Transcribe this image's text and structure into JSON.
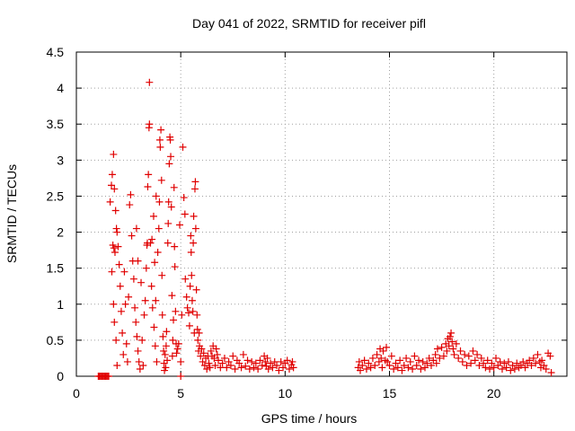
{
  "chart_data": {
    "type": "scatter",
    "title": "Day 041 of 2022, SRMTID for receiver pifl",
    "xlabel": "GPS time / hours",
    "ylabel": "SRMTID / TECUs",
    "xlim": [
      0,
      23.5
    ],
    "ylim": [
      0,
      4.5
    ],
    "xticks": [
      0,
      5,
      10,
      15,
      20
    ],
    "yticks": [
      0,
      0.5,
      1,
      1.5,
      2,
      2.5,
      3,
      3.5,
      4,
      4.5
    ],
    "ytick_labels": [
      "0",
      "0.5",
      "1",
      "1.5",
      "2",
      "2.5",
      "3",
      "3.5",
      "4",
      "4.5"
    ],
    "grid": true,
    "marker": "+",
    "series": [
      {
        "name": "SRMTID",
        "color": "#e00000",
        "points": [
          [
            1.05,
            0.0
          ],
          [
            1.1,
            0.0
          ],
          [
            1.15,
            0.0
          ],
          [
            1.2,
            0.0
          ],
          [
            1.25,
            0.0
          ],
          [
            1.3,
            0.0
          ],
          [
            1.35,
            0.0
          ],
          [
            1.4,
            0.0
          ],
          [
            1.45,
            0.0
          ],
          [
            1.5,
            0.0
          ],
          [
            1.55,
            0.0
          ],
          [
            5.0,
            0.0
          ],
          [
            1.62,
            2.42
          ],
          [
            1.68,
            2.65
          ],
          [
            1.72,
            2.8
          ],
          [
            1.78,
            3.08
          ],
          [
            1.82,
            2.6
          ],
          [
            1.75,
            1.82
          ],
          [
            1.8,
            1.78
          ],
          [
            1.85,
            1.72
          ],
          [
            1.7,
            1.45
          ],
          [
            1.88,
            2.3
          ],
          [
            1.92,
            2.05
          ],
          [
            1.95,
            2.0
          ],
          [
            2.0,
            1.8
          ],
          [
            1.78,
            1.0
          ],
          [
            1.82,
            0.75
          ],
          [
            1.9,
            0.5
          ],
          [
            1.95,
            0.15
          ],
          [
            2.05,
            1.55
          ],
          [
            2.1,
            1.25
          ],
          [
            2.15,
            0.9
          ],
          [
            2.2,
            0.6
          ],
          [
            2.25,
            0.3
          ],
          [
            2.3,
            1.45
          ],
          [
            2.35,
            1.0
          ],
          [
            2.4,
            0.45
          ],
          [
            2.45,
            0.2
          ],
          [
            2.5,
            1.1
          ],
          [
            2.55,
            2.38
          ],
          [
            2.6,
            2.52
          ],
          [
            2.65,
            1.95
          ],
          [
            2.7,
            1.6
          ],
          [
            2.75,
            1.35
          ],
          [
            2.8,
            0.95
          ],
          [
            2.85,
            0.75
          ],
          [
            2.9,
            0.55
          ],
          [
            2.95,
            0.35
          ],
          [
            3.0,
            0.2
          ],
          [
            3.05,
            0.1
          ],
          [
            2.88,
            2.05
          ],
          [
            2.95,
            1.6
          ],
          [
            3.1,
            1.3
          ],
          [
            3.15,
            0.5
          ],
          [
            3.2,
            0.15
          ],
          [
            3.25,
            0.85
          ],
          [
            3.3,
            1.05
          ],
          [
            3.35,
            1.5
          ],
          [
            3.38,
            1.82
          ],
          [
            3.4,
            1.85
          ],
          [
            3.42,
            2.63
          ],
          [
            3.45,
            2.8
          ],
          [
            3.48,
            3.45
          ],
          [
            3.5,
            3.5
          ],
          [
            3.5,
            4.08
          ],
          [
            3.55,
            1.85
          ],
          [
            3.6,
            1.25
          ],
          [
            3.62,
            1.9
          ],
          [
            3.65,
            0.95
          ],
          [
            3.7,
            2.22
          ],
          [
            3.72,
            0.68
          ],
          [
            3.75,
            1.58
          ],
          [
            3.78,
            0.42
          ],
          [
            3.8,
            1.05
          ],
          [
            3.82,
            2.5
          ],
          [
            3.85,
            0.2
          ],
          [
            3.9,
            1.72
          ],
          [
            3.95,
            2.05
          ],
          [
            3.98,
            2.42
          ],
          [
            4.0,
            3.28
          ],
          [
            4.02,
            3.18
          ],
          [
            4.05,
            3.42
          ],
          [
            4.08,
            2.72
          ],
          [
            4.1,
            1.4
          ],
          [
            4.12,
            0.85
          ],
          [
            4.15,
            0.55
          ],
          [
            4.18,
            0.35
          ],
          [
            4.2,
            0.18
          ],
          [
            4.22,
            0.08
          ],
          [
            4.25,
            0.3
          ],
          [
            4.28,
            0.12
          ],
          [
            4.3,
            0.42
          ],
          [
            4.32,
            0.62
          ],
          [
            4.35,
            0.22
          ],
          [
            4.38,
            1.85
          ],
          [
            4.4,
            2.12
          ],
          [
            4.42,
            2.42
          ],
          [
            4.45,
            2.95
          ],
          [
            4.48,
            3.32
          ],
          [
            4.5,
            3.28
          ],
          [
            4.52,
            3.05
          ],
          [
            4.55,
            2.35
          ],
          [
            4.58,
            1.12
          ],
          [
            4.6,
            0.28
          ],
          [
            4.62,
            0.5
          ],
          [
            4.65,
            0.78
          ],
          [
            4.68,
            2.62
          ],
          [
            4.7,
            1.8
          ],
          [
            4.72,
            1.52
          ],
          [
            4.75,
            0.9
          ],
          [
            4.78,
            0.45
          ],
          [
            4.8,
            0.32
          ],
          [
            4.85,
            0.38
          ],
          [
            4.9,
            0.45
          ],
          [
            4.95,
            2.1
          ],
          [
            5.0,
            0.2
          ],
          [
            5.05,
            0.85
          ],
          [
            5.1,
            3.18
          ],
          [
            5.15,
            2.48
          ],
          [
            5.2,
            2.25
          ],
          [
            5.22,
            1.35
          ],
          [
            5.28,
            1.1
          ],
          [
            5.32,
            0.95
          ],
          [
            5.38,
            0.88
          ],
          [
            5.42,
            0.7
          ],
          [
            5.45,
            1.25
          ],
          [
            5.48,
            1.95
          ],
          [
            5.5,
            1.72
          ],
          [
            5.52,
            1.4
          ],
          [
            5.55,
            1.05
          ],
          [
            5.58,
            0.9
          ],
          [
            5.6,
            1.85
          ],
          [
            5.62,
            2.22
          ],
          [
            5.65,
            0.6
          ],
          [
            5.68,
            2.6
          ],
          [
            5.7,
            2.7
          ],
          [
            5.72,
            2.05
          ],
          [
            5.75,
            1.2
          ],
          [
            5.78,
            0.85
          ],
          [
            5.8,
            0.65
          ],
          [
            5.82,
            0.5
          ],
          [
            5.85,
            0.35
          ],
          [
            5.88,
            0.6
          ],
          [
            5.9,
            0.42
          ],
          [
            5.95,
            0.28
          ],
          [
            6.0,
            0.38
          ],
          [
            6.05,
            0.2
          ],
          [
            6.1,
            0.32
          ],
          [
            6.15,
            0.15
          ],
          [
            6.2,
            0.25
          ],
          [
            6.25,
            0.1
          ],
          [
            6.3,
            0.28
          ],
          [
            6.35,
            0.18
          ],
          [
            6.4,
            0.12
          ],
          [
            6.45,
            0.35
          ],
          [
            6.5,
            0.28
          ],
          [
            6.55,
            0.42
          ],
          [
            6.6,
            0.25
          ],
          [
            6.65,
            0.15
          ],
          [
            6.7,
            0.38
          ],
          [
            6.75,
            0.3
          ],
          [
            6.8,
            0.22
          ],
          [
            6.9,
            0.12
          ],
          [
            7.0,
            0.18
          ],
          [
            7.1,
            0.25
          ],
          [
            7.2,
            0.12
          ],
          [
            7.3,
            0.2
          ],
          [
            7.4,
            0.15
          ],
          [
            7.5,
            0.28
          ],
          [
            7.6,
            0.1
          ],
          [
            7.7,
            0.22
          ],
          [
            7.8,
            0.18
          ],
          [
            7.9,
            0.12
          ],
          [
            8.0,
            0.3
          ],
          [
            8.1,
            0.14
          ],
          [
            8.2,
            0.22
          ],
          [
            8.3,
            0.1
          ],
          [
            8.4,
            0.2
          ],
          [
            8.5,
            0.12
          ],
          [
            8.6,
            0.18
          ],
          [
            8.7,
            0.1
          ],
          [
            8.8,
            0.22
          ],
          [
            8.9,
            0.15
          ],
          [
            9.0,
            0.28
          ],
          [
            9.05,
            0.2
          ],
          [
            9.1,
            0.14
          ],
          [
            9.15,
            0.25
          ],
          [
            9.2,
            0.1
          ],
          [
            9.3,
            0.18
          ],
          [
            9.4,
            0.12
          ],
          [
            9.5,
            0.2
          ],
          [
            9.6,
            0.15
          ],
          [
            9.7,
            0.08
          ],
          [
            9.8,
            0.2
          ],
          [
            9.9,
            0.12
          ],
          [
            10.0,
            0.18
          ],
          [
            10.1,
            0.22
          ],
          [
            10.2,
            0.1
          ],
          [
            10.3,
            0.16
          ],
          [
            10.35,
            0.2
          ],
          [
            10.4,
            0.12
          ],
          [
            13.5,
            0.12
          ],
          [
            13.55,
            0.2
          ],
          [
            13.6,
            0.08
          ],
          [
            13.7,
            0.15
          ],
          [
            13.8,
            0.22
          ],
          [
            13.9,
            0.1
          ],
          [
            14.0,
            0.18
          ],
          [
            14.1,
            0.12
          ],
          [
            14.2,
            0.25
          ],
          [
            14.3,
            0.15
          ],
          [
            14.4,
            0.3
          ],
          [
            14.5,
            0.2
          ],
          [
            14.55,
            0.38
          ],
          [
            14.6,
            0.25
          ],
          [
            14.65,
            0.12
          ],
          [
            14.7,
            0.35
          ],
          [
            14.8,
            0.22
          ],
          [
            14.85,
            0.4
          ],
          [
            14.9,
            0.2
          ],
          [
            15.0,
            0.15
          ],
          [
            15.1,
            0.28
          ],
          [
            15.2,
            0.1
          ],
          [
            15.3,
            0.18
          ],
          [
            15.4,
            0.12
          ],
          [
            15.5,
            0.22
          ],
          [
            15.6,
            0.08
          ],
          [
            15.7,
            0.15
          ],
          [
            15.8,
            0.25
          ],
          [
            15.9,
            0.12
          ],
          [
            16.0,
            0.2
          ],
          [
            16.1,
            0.1
          ],
          [
            16.2,
            0.28
          ],
          [
            16.3,
            0.15
          ],
          [
            16.4,
            0.22
          ],
          [
            16.5,
            0.1
          ],
          [
            16.6,
            0.2
          ],
          [
            16.7,
            0.12
          ],
          [
            16.8,
            0.18
          ],
          [
            16.9,
            0.25
          ],
          [
            17.0,
            0.15
          ],
          [
            17.1,
            0.22
          ],
          [
            17.2,
            0.3
          ],
          [
            17.25,
            0.18
          ],
          [
            17.3,
            0.38
          ],
          [
            17.4,
            0.25
          ],
          [
            17.5,
            0.4
          ],
          [
            17.6,
            0.28
          ],
          [
            17.7,
            0.45
          ],
          [
            17.75,
            0.35
          ],
          [
            17.8,
            0.52
          ],
          [
            17.85,
            0.42
          ],
          [
            17.9,
            0.55
          ],
          [
            17.95,
            0.6
          ],
          [
            18.0,
            0.48
          ],
          [
            18.05,
            0.38
          ],
          [
            18.1,
            0.3
          ],
          [
            18.2,
            0.45
          ],
          [
            18.3,
            0.25
          ],
          [
            18.4,
            0.35
          ],
          [
            18.5,
            0.2
          ],
          [
            18.6,
            0.3
          ],
          [
            18.7,
            0.15
          ],
          [
            18.8,
            0.28
          ],
          [
            18.9,
            0.18
          ],
          [
            19.0,
            0.35
          ],
          [
            19.1,
            0.22
          ],
          [
            19.2,
            0.3
          ],
          [
            19.3,
            0.15
          ],
          [
            19.4,
            0.25
          ],
          [
            19.5,
            0.18
          ],
          [
            19.6,
            0.12
          ],
          [
            19.7,
            0.22
          ],
          [
            19.8,
            0.1
          ],
          [
            19.9,
            0.18
          ],
          [
            20.0,
            0.12
          ],
          [
            20.1,
            0.25
          ],
          [
            20.2,
            0.15
          ],
          [
            20.3,
            0.2
          ],
          [
            20.4,
            0.1
          ],
          [
            20.5,
            0.18
          ],
          [
            20.6,
            0.12
          ],
          [
            20.7,
            0.2
          ],
          [
            20.8,
            0.08
          ],
          [
            20.9,
            0.15
          ],
          [
            21.0,
            0.1
          ],
          [
            21.1,
            0.18
          ],
          [
            21.2,
            0.12
          ],
          [
            21.3,
            0.15
          ],
          [
            21.4,
            0.2
          ],
          [
            21.5,
            0.12
          ],
          [
            21.6,
            0.18
          ],
          [
            21.7,
            0.22
          ],
          [
            21.8,
            0.15
          ],
          [
            21.9,
            0.25
          ],
          [
            22.0,
            0.18
          ],
          [
            22.1,
            0.3
          ],
          [
            22.2,
            0.2
          ],
          [
            22.25,
            0.12
          ],
          [
            22.3,
            0.22
          ],
          [
            22.4,
            0.15
          ],
          [
            22.5,
            0.1
          ],
          [
            22.6,
            0.32
          ],
          [
            22.7,
            0.28
          ],
          [
            22.75,
            0.05
          ]
        ]
      }
    ]
  }
}
